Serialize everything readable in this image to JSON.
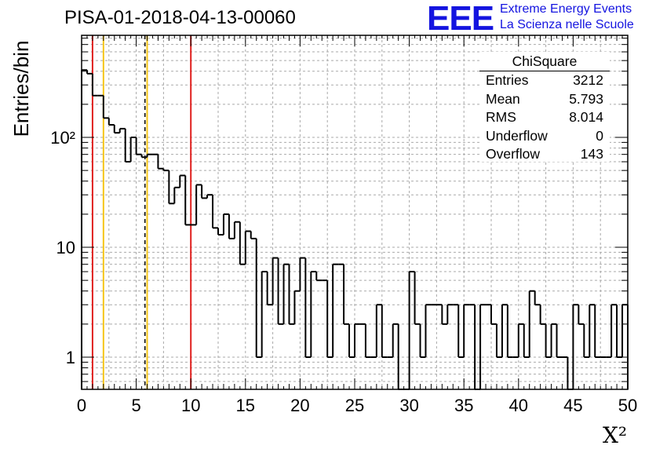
{
  "chart_data": {
    "type": "histogram",
    "title": "PISA-01-2018-04-13-00060",
    "xlabel": "X²",
    "ylabel": "Entries/bin",
    "xlim": [
      0,
      50
    ],
    "ylim": [
      0.5,
      800
    ],
    "yscale": "log",
    "grid": true,
    "bin_width": 0.5,
    "x_ticks": [
      0,
      5,
      10,
      15,
      20,
      25,
      30,
      35,
      40,
      45,
      50
    ],
    "y_ticks": [
      1,
      10,
      100
    ],
    "y_tick_labels": [
      "1",
      "10",
      "10²"
    ],
    "bin_contents": [
      410,
      380,
      240,
      240,
      150,
      130,
      110,
      120,
      60,
      100,
      70,
      66,
      70,
      70,
      52,
      50,
      25,
      35,
      45,
      16,
      16,
      37,
      28,
      30,
      15,
      13,
      20,
      12,
      17,
      7,
      14,
      12,
      1,
      6,
      3,
      8,
      2,
      7,
      2,
      4,
      8,
      1,
      6,
      5,
      5,
      1,
      7,
      7,
      2,
      1,
      2,
      2,
      1,
      1,
      3,
      1,
      1,
      2,
      0,
      0,
      6,
      2,
      1,
      3,
      3,
      3,
      2,
      3,
      3,
      1,
      3,
      3,
      0,
      3,
      3,
      2,
      1,
      3,
      1,
      1,
      2,
      1,
      4,
      3,
      2,
      1,
      2,
      1,
      1,
      0,
      3,
      2,
      1,
      3,
      1,
      1,
      1,
      3,
      1,
      3
    ],
    "vertical_lines": [
      {
        "x": 1,
        "color": "#e0201e",
        "style": "solid"
      },
      {
        "x": 2,
        "color": "#f5c518",
        "style": "solid"
      },
      {
        "x": 5.8,
        "color": "#000000",
        "style": "dashed"
      },
      {
        "x": 6,
        "color": "#f5c518",
        "style": "solid"
      },
      {
        "x": 10,
        "color": "#e0201e",
        "style": "solid"
      }
    ],
    "stats_box": {
      "title": "ChiSquare",
      "rows": [
        {
          "label": "Entries",
          "value": "3212"
        },
        {
          "label": "Mean",
          "value": "5.793"
        },
        {
          "label": "RMS",
          "value": "8.014"
        },
        {
          "label": "Underflow",
          "value": "0"
        },
        {
          "label": "Overflow",
          "value": "143"
        }
      ]
    }
  },
  "logo": {
    "mark": "EEE",
    "line1": "Extreme Energy Events",
    "line2": "La Scienza nelle Scuole"
  }
}
